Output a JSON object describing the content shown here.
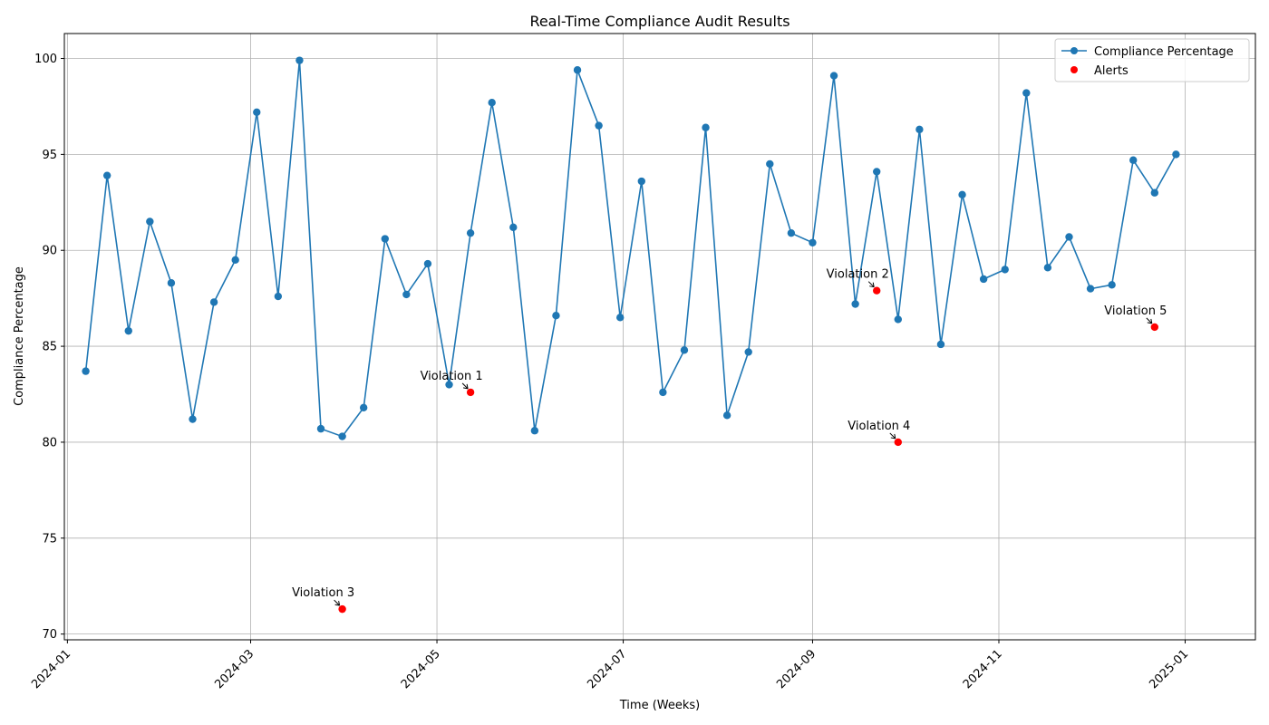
{
  "chart_data": {
    "type": "line",
    "title": "Real-Time Compliance Audit Results",
    "xlabel": "Time (Weeks)",
    "ylabel": "Compliance Percentage",
    "ylim": [
      69.7,
      101.3
    ],
    "xlim": [
      "2023-12-31",
      "2025-01-24"
    ],
    "x_ticks": [
      "2024-01-01",
      "2024-03-01",
      "2024-05-01",
      "2024-07-01",
      "2024-09-01",
      "2024-11-01",
      "2025-01-01"
    ],
    "y_ticks": [
      70,
      75,
      80,
      85,
      90,
      95,
      100
    ],
    "grid": true,
    "legend_position": "top-right",
    "colors": {
      "line": "#1f77b4",
      "alert": "#ff0000",
      "grid": "#b0b0b0"
    },
    "series": [
      {
        "name": "Compliance Percentage",
        "points": [
          {
            "x": "2024-01-07",
            "y": 83.7
          },
          {
            "x": "2024-01-14",
            "y": 93.9
          },
          {
            "x": "2024-01-21",
            "y": 85.8
          },
          {
            "x": "2024-01-28",
            "y": 91.5
          },
          {
            "x": "2024-02-04",
            "y": 88.3
          },
          {
            "x": "2024-02-11",
            "y": 81.2
          },
          {
            "x": "2024-02-18",
            "y": 87.3
          },
          {
            "x": "2024-02-25",
            "y": 89.5
          },
          {
            "x": "2024-03-03",
            "y": 97.2
          },
          {
            "x": "2024-03-10",
            "y": 87.6
          },
          {
            "x": "2024-03-17",
            "y": 99.9
          },
          {
            "x": "2024-03-24",
            "y": 80.7
          },
          {
            "x": "2024-03-31",
            "y": 80.3
          },
          {
            "x": "2024-04-07",
            "y": 81.8
          },
          {
            "x": "2024-04-14",
            "y": 90.6
          },
          {
            "x": "2024-04-21",
            "y": 87.7
          },
          {
            "x": "2024-04-28",
            "y": 89.3
          },
          {
            "x": "2024-05-05",
            "y": 83.0
          },
          {
            "x": "2024-05-12",
            "y": 90.9
          },
          {
            "x": "2024-05-19",
            "y": 97.7
          },
          {
            "x": "2024-05-26",
            "y": 91.2
          },
          {
            "x": "2024-06-02",
            "y": 80.6
          },
          {
            "x": "2024-06-09",
            "y": 86.6
          },
          {
            "x": "2024-06-16",
            "y": 99.4
          },
          {
            "x": "2024-06-23",
            "y": 96.5
          },
          {
            "x": "2024-06-30",
            "y": 86.5
          },
          {
            "x": "2024-07-07",
            "y": 93.6
          },
          {
            "x": "2024-07-14",
            "y": 82.6
          },
          {
            "x": "2024-07-21",
            "y": 84.8
          },
          {
            "x": "2024-07-28",
            "y": 96.4
          },
          {
            "x": "2024-08-04",
            "y": 81.4
          },
          {
            "x": "2024-08-11",
            "y": 84.7
          },
          {
            "x": "2024-08-18",
            "y": 94.5
          },
          {
            "x": "2024-08-25",
            "y": 90.9
          },
          {
            "x": "2024-09-01",
            "y": 90.4
          },
          {
            "x": "2024-09-08",
            "y": 99.1
          },
          {
            "x": "2024-09-15",
            "y": 87.2
          },
          {
            "x": "2024-09-22",
            "y": 94.1
          },
          {
            "x": "2024-09-29",
            "y": 86.4
          },
          {
            "x": "2024-10-06",
            "y": 96.3
          },
          {
            "x": "2024-10-13",
            "y": 85.1
          },
          {
            "x": "2024-10-20",
            "y": 92.9
          },
          {
            "x": "2024-10-27",
            "y": 88.5
          },
          {
            "x": "2024-11-03",
            "y": 89.0
          },
          {
            "x": "2024-11-10",
            "y": 98.2
          },
          {
            "x": "2024-11-17",
            "y": 89.1
          },
          {
            "x": "2024-11-24",
            "y": 90.7
          },
          {
            "x": "2024-12-01",
            "y": 88.0
          },
          {
            "x": "2024-12-08",
            "y": 88.2
          },
          {
            "x": "2024-12-15",
            "y": 94.7
          },
          {
            "x": "2024-12-22",
            "y": 93.0
          },
          {
            "x": "2024-12-29",
            "y": 95.0
          }
        ]
      },
      {
        "name": "Alerts",
        "type": "scatter",
        "points": [
          {
            "x": "2024-05-12",
            "y": 82.6,
            "label": "Violation 1"
          },
          {
            "x": "2024-09-22",
            "y": 87.9,
            "label": "Violation 2"
          },
          {
            "x": "2024-03-31",
            "y": 71.3,
            "label": "Violation 3"
          },
          {
            "x": "2024-09-29",
            "y": 80.0,
            "label": "Violation 4"
          },
          {
            "x": "2024-12-22",
            "y": 86.0,
            "label": "Violation 5"
          }
        ]
      }
    ]
  }
}
